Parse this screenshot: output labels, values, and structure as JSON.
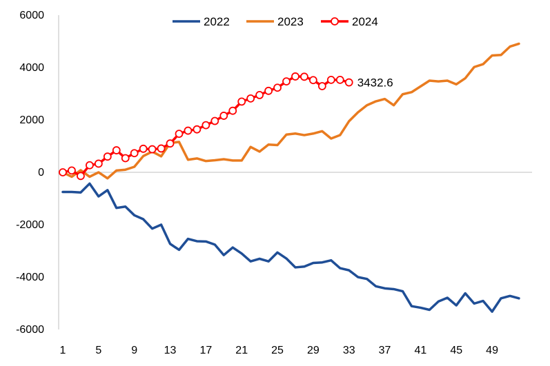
{
  "chart_data": {
    "type": "line",
    "title": "",
    "xlabel": "",
    "ylabel": "",
    "xlim": [
      1,
      52
    ],
    "ylim": [
      -6000,
      6000
    ],
    "y_ticks": [
      "6000",
      "4000",
      "2000",
      "0",
      "-2000",
      "-4000",
      "-6000"
    ],
    "x_ticks": [
      "1",
      "5",
      "9",
      "13",
      "17",
      "21",
      "25",
      "29",
      "33",
      "37",
      "41",
      "45",
      "49"
    ],
    "grid": false,
    "legend": "top-center",
    "series": [
      {
        "name": "2022",
        "color": "#1F4E96",
        "markers": false,
        "values": [
          -750,
          -750,
          -770,
          -430,
          -920,
          -680,
          -1360,
          -1310,
          -1640,
          -1790,
          -2150,
          -2000,
          -2730,
          -2960,
          -2540,
          -2630,
          -2640,
          -2760,
          -3160,
          -2870,
          -3100,
          -3400,
          -3300,
          -3400,
          -3060,
          -3290,
          -3630,
          -3600,
          -3460,
          -3440,
          -3360,
          -3660,
          -3740,
          -4000,
          -4070,
          -4350,
          -4430,
          -4460,
          -4540,
          -5110,
          -5170,
          -5250,
          -4930,
          -4790,
          -5080,
          -4620,
          -5010,
          -4910,
          -5320,
          -4810,
          -4720,
          -4810
        ]
      },
      {
        "name": "2023",
        "color": "#E97B1F",
        "markers": false,
        "values": [
          0,
          -170,
          80,
          -170,
          0,
          -230,
          70,
          100,
          210,
          620,
          790,
          610,
          1120,
          1160,
          480,
          530,
          430,
          460,
          500,
          450,
          450,
          970,
          790,
          1060,
          1040,
          1440,
          1480,
          1420,
          1480,
          1570,
          1290,
          1420,
          1950,
          2290,
          2560,
          2710,
          2800,
          2560,
          2980,
          3060,
          3280,
          3500,
          3470,
          3500,
          3360,
          3590,
          4020,
          4130,
          4460,
          4480,
          4800,
          4910
        ]
      },
      {
        "name": "2024",
        "color": "#FF0000",
        "markers": true,
        "values": [
          0,
          70,
          -140,
          270,
          330,
          600,
          840,
          540,
          730,
          900,
          880,
          910,
          1100,
          1470,
          1590,
          1640,
          1800,
          1960,
          2160,
          2350,
          2700,
          2820,
          2950,
          3110,
          3230,
          3470,
          3660,
          3650,
          3520,
          3290,
          3530,
          3530,
          3432.6
        ]
      }
    ],
    "annotations": [
      {
        "text": "3432.6",
        "series": "2024",
        "x": 33
      }
    ]
  }
}
